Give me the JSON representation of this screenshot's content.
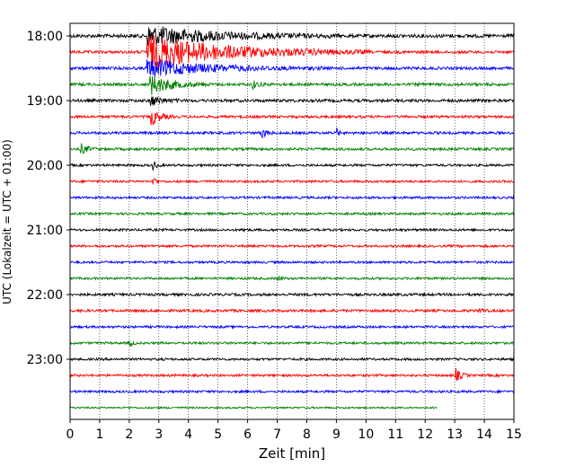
{
  "chart_data": {
    "type": "line",
    "title": "",
    "xlabel": "Zeit  [min]",
    "ylabel": "UTC (Lokalzeit = UTC + 01:00)",
    "xlim": [
      0,
      15
    ],
    "x_ticks": [
      0,
      1,
      2,
      3,
      4,
      5,
      6,
      7,
      8,
      9,
      10,
      11,
      12,
      13,
      14,
      15
    ],
    "y_tick_labels": [
      "18:00",
      "19:00",
      "20:00",
      "21:00",
      "22:00",
      "23:00"
    ],
    "grid": "vertical dotted",
    "trace_interval_minutes": 15,
    "traces_start": "18:00",
    "trace_colors": [
      "#000000",
      "#ff0000",
      "#0000ff",
      "#008000"
    ],
    "series": [
      {
        "start": "18:00",
        "amplitude": 1.2,
        "events": [
          {
            "t": 2.6,
            "dur": 6.5,
            "amp": 3.5
          }
        ],
        "end_min": 15
      },
      {
        "start": "18:15",
        "amplitude": 1.0,
        "events": [
          {
            "t": 2.6,
            "dur": 7.5,
            "amp": 6.0
          }
        ],
        "end_min": 15
      },
      {
        "start": "18:30",
        "amplitude": 1.0,
        "events": [
          {
            "t": 2.6,
            "dur": 6.0,
            "amp": 3.0
          }
        ],
        "end_min": 15
      },
      {
        "start": "18:45",
        "amplitude": 1.0,
        "events": [
          {
            "t": 2.7,
            "dur": 2.0,
            "amp": 3.5
          },
          {
            "t": 6.1,
            "dur": 0.5,
            "amp": 2.0
          }
        ],
        "end_min": 15
      },
      {
        "start": "19:00",
        "amplitude": 1.0,
        "events": [
          {
            "t": 2.7,
            "dur": 1.0,
            "amp": 2.0
          }
        ],
        "end_min": 15
      },
      {
        "start": "19:15",
        "amplitude": 0.9,
        "events": [
          {
            "t": 2.7,
            "dur": 0.8,
            "amp": 3.5
          }
        ],
        "end_min": 15
      },
      {
        "start": "19:30",
        "amplitude": 0.9,
        "events": [
          {
            "t": 6.4,
            "dur": 0.5,
            "amp": 2.5
          },
          {
            "t": 9.0,
            "dur": 0.2,
            "amp": 2.0
          }
        ],
        "end_min": 15
      },
      {
        "start": "19:45",
        "amplitude": 0.9,
        "events": [
          {
            "t": 0.35,
            "dur": 0.6,
            "amp": 2.0
          }
        ],
        "end_min": 15
      },
      {
        "start": "20:00",
        "amplitude": 0.8,
        "events": [
          {
            "t": 2.8,
            "dur": 0.3,
            "amp": 2.0
          }
        ],
        "end_min": 15
      },
      {
        "start": "20:15",
        "amplitude": 0.8,
        "events": [
          {
            "t": 2.8,
            "dur": 0.2,
            "amp": 3.5
          }
        ],
        "end_min": 15
      },
      {
        "start": "20:30",
        "amplitude": 0.8,
        "events": [],
        "end_min": 15
      },
      {
        "start": "20:45",
        "amplitude": 0.8,
        "events": [],
        "end_min": 15
      },
      {
        "start": "21:00",
        "amplitude": 0.8,
        "events": [
          {
            "t": 5.8,
            "dur": 0.2,
            "amp": 1.5
          }
        ],
        "end_min": 15
      },
      {
        "start": "21:15",
        "amplitude": 0.8,
        "events": [],
        "end_min": 15
      },
      {
        "start": "21:30",
        "amplitude": 0.8,
        "events": [],
        "end_min": 15
      },
      {
        "start": "21:45",
        "amplitude": 0.8,
        "events": [
          {
            "t": 7.0,
            "dur": 0.3,
            "amp": 1.3
          }
        ],
        "end_min": 15
      },
      {
        "start": "22:00",
        "amplitude": 0.9,
        "events": [],
        "end_min": 15
      },
      {
        "start": "22:15",
        "amplitude": 0.9,
        "events": [
          {
            "t": 13.8,
            "dur": 0.3,
            "amp": 1.5
          }
        ],
        "end_min": 15
      },
      {
        "start": "22:30",
        "amplitude": 0.8,
        "events": [],
        "end_min": 15
      },
      {
        "start": "22:45",
        "amplitude": 0.8,
        "events": [
          {
            "t": 2.0,
            "dur": 0.3,
            "amp": 1.3
          }
        ],
        "end_min": 15
      },
      {
        "start": "23:00",
        "amplitude": 0.8,
        "events": [],
        "end_min": 15
      },
      {
        "start": "23:15",
        "amplitude": 0.8,
        "events": [
          {
            "t": 13.0,
            "dur": 0.5,
            "amp": 2.8
          }
        ],
        "end_min": 15
      },
      {
        "start": "23:30",
        "amplitude": 0.8,
        "events": [],
        "end_min": 15
      },
      {
        "start": "23:45",
        "amplitude": 0.6,
        "events": [],
        "end_min": 12.4
      }
    ]
  }
}
